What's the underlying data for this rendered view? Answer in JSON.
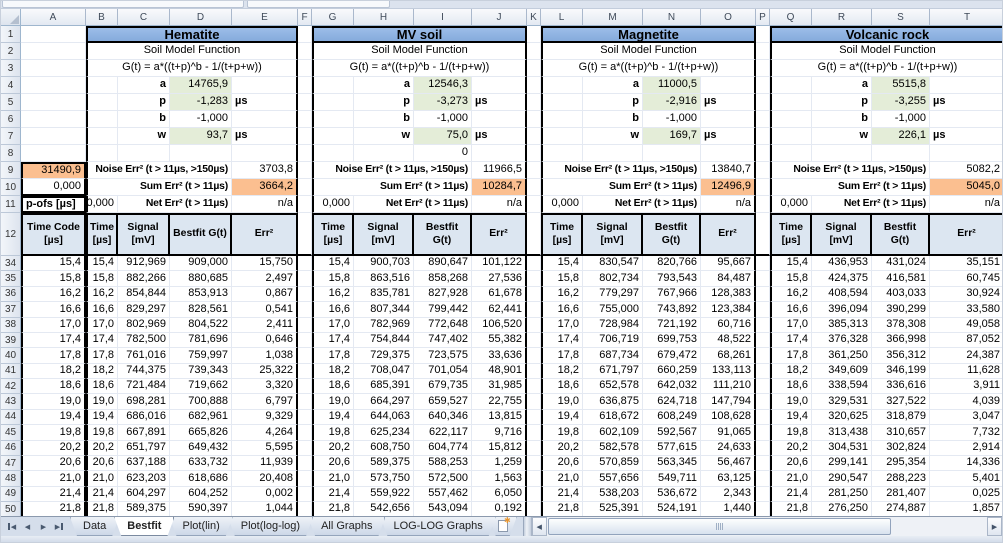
{
  "columns": [
    "A",
    "B",
    "C",
    "D",
    "E",
    "F",
    "G",
    "H",
    "I",
    "J",
    "K",
    "L",
    "M",
    "N",
    "O",
    "P",
    "Q",
    "R",
    "S",
    "T"
  ],
  "row_numbers_frozen": [
    "1",
    "2",
    "3",
    "4",
    "5",
    "6",
    "7",
    "8",
    "9",
    "10",
    "11",
    "12"
  ],
  "row_numbers_data": [
    "34",
    "35",
    "36",
    "37",
    "38",
    "39",
    "40",
    "41",
    "42",
    "43",
    "44",
    "45",
    "46",
    "47",
    "48",
    "49",
    "50"
  ],
  "labels": {
    "model_title": "Soil Model Function",
    "formula": "G(t) = a*((t+p)^b - 1/(t+p+w))",
    "param_names": [
      "a",
      "p",
      "b",
      "w"
    ],
    "param_units": [
      "",
      "µs",
      "",
      "µs"
    ],
    "noise_label": "Noise Err² (t > 11µs, >150µs)",
    "sum_label": "Sum Err² (t > 11µs)",
    "net_label": "Net Err² (t > 11µs)"
  },
  "col_a": {
    "noise_value": "31490,9",
    "sum_value": "0,000",
    "p_ofs_label": "p-ofs [µs]",
    "header": "Time Code\n[µs]"
  },
  "sections": [
    {
      "title": "Hematite",
      "params": [
        "14765,9",
        "-1,283",
        "-1,000",
        "93,7"
      ],
      "row8": "",
      "noise": "3703,8",
      "sum": "3664,2",
      "net": "n/a",
      "net_left": "0,000",
      "table_headers": [
        "Time\n[µs]",
        "Signal\n[mV]",
        "Bestfit G(t)",
        "Err²"
      ],
      "rows": [
        [
          "15,4",
          "912,969",
          "909,000",
          "15,750"
        ],
        [
          "15,8",
          "882,266",
          "880,685",
          "2,497"
        ],
        [
          "16,2",
          "854,844",
          "853,913",
          "0,867"
        ],
        [
          "16,6",
          "829,297",
          "828,561",
          "0,541"
        ],
        [
          "17,0",
          "802,969",
          "804,522",
          "2,411"
        ],
        [
          "17,4",
          "782,500",
          "781,696",
          "0,646"
        ],
        [
          "17,8",
          "761,016",
          "759,997",
          "1,038"
        ],
        [
          "18,2",
          "744,375",
          "739,343",
          "25,322"
        ],
        [
          "18,6",
          "721,484",
          "719,662",
          "3,320"
        ],
        [
          "19,0",
          "698,281",
          "700,888",
          "6,797"
        ],
        [
          "19,4",
          "686,016",
          "682,961",
          "9,329"
        ],
        [
          "19,8",
          "667,891",
          "665,826",
          "4,264"
        ],
        [
          "20,2",
          "651,797",
          "649,432",
          "5,595"
        ],
        [
          "20,6",
          "637,188",
          "633,732",
          "11,939"
        ],
        [
          "21,0",
          "623,203",
          "618,686",
          "20,408"
        ],
        [
          "21,4",
          "604,297",
          "604,252",
          "0,002"
        ],
        [
          "21,8",
          "589,375",
          "590,397",
          "1,044"
        ]
      ]
    },
    {
      "title": "MV soil",
      "params": [
        "12546,3",
        "-3,273",
        "-1,000",
        "75,0"
      ],
      "row8": "0",
      "noise": "11966,5",
      "sum": "10284,7",
      "net": "n/a",
      "net_left": "0,000",
      "table_headers": [
        "Time\n[µs]",
        "Signal\n[mV]",
        "Bestfit\nG(t)",
        "Err²"
      ],
      "rows": [
        [
          "15,4",
          "900,703",
          "890,647",
          "101,122"
        ],
        [
          "15,8",
          "863,516",
          "858,268",
          "27,536"
        ],
        [
          "16,2",
          "835,781",
          "827,928",
          "61,678"
        ],
        [
          "16,6",
          "807,344",
          "799,442",
          "62,441"
        ],
        [
          "17,0",
          "782,969",
          "772,648",
          "106,520"
        ],
        [
          "17,4",
          "754,844",
          "747,402",
          "55,382"
        ],
        [
          "17,8",
          "729,375",
          "723,575",
          "33,636"
        ],
        [
          "18,2",
          "708,047",
          "701,054",
          "48,901"
        ],
        [
          "18,6",
          "685,391",
          "679,735",
          "31,985"
        ],
        [
          "19,0",
          "664,297",
          "659,527",
          "22,755"
        ],
        [
          "19,4",
          "644,063",
          "640,346",
          "13,815"
        ],
        [
          "19,8",
          "625,234",
          "622,117",
          "9,716"
        ],
        [
          "20,2",
          "608,750",
          "604,774",
          "15,812"
        ],
        [
          "20,6",
          "589,375",
          "588,253",
          "1,259"
        ],
        [
          "21,0",
          "573,750",
          "572,500",
          "1,563"
        ],
        [
          "21,4",
          "559,922",
          "557,462",
          "6,050"
        ],
        [
          "21,8",
          "542,656",
          "543,094",
          "0,192"
        ]
      ]
    },
    {
      "title": "Magnetite",
      "params": [
        "11000,5",
        "-2,916",
        "-1,000",
        "169,7"
      ],
      "row8": "",
      "noise": "13840,7",
      "sum": "12496,9",
      "net": "n/a",
      "net_left": "0,000",
      "table_headers": [
        "Time\n[µs]",
        "Signal\n[mV]",
        "Bestfit\nG(t)",
        "Err²"
      ],
      "rows": [
        [
          "15,4",
          "830,547",
          "820,766",
          "95,667"
        ],
        [
          "15,8",
          "802,734",
          "793,543",
          "84,487"
        ],
        [
          "16,2",
          "779,297",
          "767,966",
          "128,383"
        ],
        [
          "16,6",
          "755,000",
          "743,892",
          "123,384"
        ],
        [
          "17,0",
          "728,984",
          "721,192",
          "60,716"
        ],
        [
          "17,4",
          "706,719",
          "699,753",
          "48,522"
        ],
        [
          "17,8",
          "687,734",
          "679,472",
          "68,261"
        ],
        [
          "18,2",
          "671,797",
          "660,259",
          "133,113"
        ],
        [
          "18,6",
          "652,578",
          "642,032",
          "111,210"
        ],
        [
          "19,0",
          "636,875",
          "624,718",
          "147,794"
        ],
        [
          "19,4",
          "618,672",
          "608,249",
          "108,628"
        ],
        [
          "19,8",
          "602,109",
          "592,567",
          "91,065"
        ],
        [
          "20,2",
          "582,578",
          "577,615",
          "24,633"
        ],
        [
          "20,6",
          "570,859",
          "563,345",
          "56,467"
        ],
        [
          "21,0",
          "557,656",
          "549,711",
          "63,125"
        ],
        [
          "21,4",
          "538,203",
          "536,672",
          "2,343"
        ],
        [
          "21,8",
          "525,391",
          "524,191",
          "1,440"
        ]
      ]
    },
    {
      "title": "Volcanic rock",
      "params": [
        "5515,8",
        "-3,255",
        "-1,000",
        "226,1"
      ],
      "row8": "",
      "noise": "5082,2",
      "sum": "5045,0",
      "net": "n/a",
      "net_left": "0,000",
      "table_headers": [
        "Time\n[µs]",
        "Signal\n[mV]",
        "Bestfit\nG(t)",
        "Err²"
      ],
      "rows": [
        [
          "15,4",
          "436,953",
          "431,024",
          "35,151"
        ],
        [
          "15,8",
          "424,375",
          "416,581",
          "60,745"
        ],
        [
          "16,2",
          "408,594",
          "403,033",
          "30,924"
        ],
        [
          "16,6",
          "396,094",
          "390,299",
          "33,580"
        ],
        [
          "17,0",
          "385,313",
          "378,308",
          "49,058"
        ],
        [
          "17,4",
          "376,328",
          "366,998",
          "87,052"
        ],
        [
          "17,8",
          "361,250",
          "356,312",
          "24,387"
        ],
        [
          "18,2",
          "349,609",
          "346,199",
          "11,628"
        ],
        [
          "18,6",
          "338,594",
          "336,616",
          "3,911"
        ],
        [
          "19,0",
          "329,531",
          "327,522",
          "4,039"
        ],
        [
          "19,4",
          "320,625",
          "318,879",
          "3,047"
        ],
        [
          "19,8",
          "313,438",
          "310,657",
          "7,732"
        ],
        [
          "20,2",
          "304,531",
          "302,824",
          "2,914"
        ],
        [
          "20,6",
          "299,141",
          "295,354",
          "14,336"
        ],
        [
          "21,0",
          "290,547",
          "288,223",
          "5,401"
        ],
        [
          "21,4",
          "281,250",
          "281,407",
          "0,025"
        ],
        [
          "21,8",
          "276,250",
          "274,887",
          "1,857"
        ]
      ]
    }
  ],
  "sheet_tabs": {
    "tabs": [
      "Data",
      "Bestfit",
      "Plot(lin)",
      "Plot(log-log)",
      "All Graphs",
      "LOG-LOG Graphs"
    ],
    "active_index": 1
  },
  "colors": {
    "section_header": "#8DB4E2",
    "param_highlight": "#E4EDD8",
    "error_highlight": "#FABF8F",
    "table_header": "#DCE6F1"
  }
}
